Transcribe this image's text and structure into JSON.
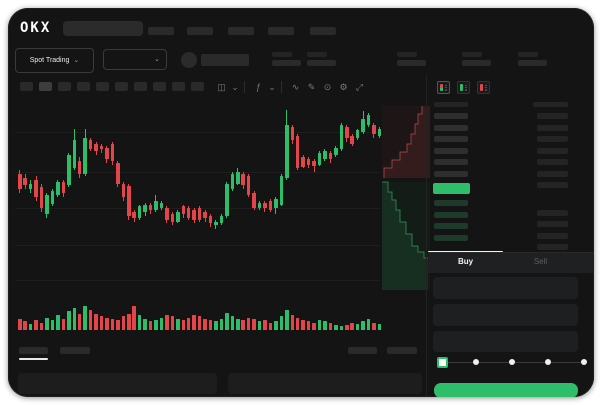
{
  "app": {
    "logo_text": "OKX"
  },
  "colors": {
    "green": "#2ebd69",
    "red": "#e2464a",
    "card_bg": "#141414",
    "placeholder": "#2a2a2a",
    "bid_row_tint": "#1d3a2b",
    "gridline": "#1e1e1e"
  },
  "header": {
    "nav_item_count": 5
  },
  "subheader": {
    "market_type_label": "Spot Trading",
    "chevron": "⌄",
    "stat_pair_count": 5
  },
  "chart_toolbar": {
    "interval_button_count": 10,
    "active_interval_index": 1,
    "icons": [
      {
        "name": "chart-type-icon",
        "glyph": "◫"
      },
      {
        "name": "chevron-down-icon",
        "glyph": "⌄"
      },
      {
        "name": "divider",
        "glyph": ""
      },
      {
        "name": "indicators-icon",
        "glyph": "ƒ"
      },
      {
        "name": "chevron-down-icon",
        "glyph": "⌄"
      },
      {
        "name": "divider",
        "glyph": ""
      },
      {
        "name": "line-tool-icon",
        "glyph": "∿"
      },
      {
        "name": "draw-tool-icon",
        "glyph": "✎"
      },
      {
        "name": "screenshot-icon",
        "glyph": "⊙"
      },
      {
        "name": "settings-icon",
        "glyph": "⚙"
      },
      {
        "name": "fullscreen-icon",
        "glyph": "⤢"
      }
    ]
  },
  "orderbook": {
    "view_icons": [
      {
        "name": "book-combined-icon",
        "mode": "both",
        "active": true
      },
      {
        "name": "book-bids-icon",
        "mode": "bids",
        "active": false
      },
      {
        "name": "book-asks-icon",
        "mode": "asks",
        "active": false
      }
    ],
    "ask_row_count": 7,
    "bid_row_count": 5,
    "last_price_highlight_color": "#2ebd69"
  },
  "trade_form": {
    "tabs": [
      {
        "label": "Buy",
        "active": true
      },
      {
        "label": "Sell",
        "active": false
      }
    ],
    "field_count": 3,
    "slider_stop_count": 5,
    "slider_position_index": 0,
    "submit_color": "#2ebd69"
  },
  "bottom_bar": {
    "left_tab_count": 2,
    "active_left_tab_index": 0,
    "right_tab_count": 2,
    "panel_count": 2
  },
  "chart_data": {
    "type": "candlestick",
    "title": "",
    "xlabel": "",
    "ylabel": "",
    "ylim": [
      0,
      100
    ],
    "grid": true,
    "candles_ohlc": [
      [
        61,
        63,
        51,
        53
      ],
      [
        59,
        61,
        53,
        55
      ],
      [
        53,
        58,
        51,
        56
      ],
      [
        58,
        60,
        47,
        49
      ],
      [
        54,
        56,
        41,
        43
      ],
      [
        40,
        51,
        38,
        50
      ],
      [
        45,
        53,
        44,
        52
      ],
      [
        50,
        58,
        49,
        57
      ],
      [
        57,
        58,
        49,
        51
      ],
      [
        55,
        72,
        54,
        71
      ],
      [
        64,
        85,
        63,
        79
      ],
      [
        68,
        70,
        59,
        61
      ],
      [
        61,
        85,
        60,
        80
      ],
      [
        79,
        80,
        73,
        74
      ],
      [
        77,
        78,
        71,
        73
      ],
      [
        76,
        77,
        72,
        74
      ],
      [
        75,
        76,
        67,
        69
      ],
      [
        77,
        78,
        66,
        68
      ],
      [
        67,
        68,
        54,
        56
      ],
      [
        56,
        57,
        47,
        49
      ],
      [
        55,
        56,
        37,
        39
      ],
      [
        41,
        42,
        36,
        38
      ],
      [
        38,
        45,
        37,
        44
      ],
      [
        41,
        46,
        39,
        45
      ],
      [
        45,
        46,
        40,
        42
      ],
      [
        42,
        50,
        41,
        47
      ],
      [
        43,
        47,
        42,
        46
      ],
      [
        43,
        44,
        35,
        37
      ],
      [
        40,
        41,
        34,
        36
      ],
      [
        36,
        42,
        35,
        41
      ],
      [
        44,
        45,
        38,
        40
      ],
      [
        43,
        44,
        37,
        38
      ],
      [
        42,
        43,
        35,
        37
      ],
      [
        43,
        44,
        36,
        37
      ],
      [
        41,
        42,
        36,
        38
      ],
      [
        39,
        40,
        33,
        35
      ],
      [
        34,
        37,
        32,
        36
      ],
      [
        35,
        40,
        34,
        39
      ],
      [
        39,
        57,
        38,
        56
      ],
      [
        53,
        62,
        52,
        61
      ],
      [
        56,
        64,
        55,
        62
      ],
      [
        61,
        62,
        53,
        55
      ],
      [
        60,
        61,
        49,
        50
      ],
      [
        51,
        52,
        42,
        43
      ],
      [
        43,
        47,
        42,
        46
      ],
      [
        46,
        47,
        41,
        43
      ],
      [
        47,
        48,
        41,
        42
      ],
      [
        43,
        49,
        40,
        48
      ],
      [
        45,
        61,
        44,
        60
      ],
      [
        59,
        95,
        58,
        87
      ],
      [
        86,
        87,
        77,
        79
      ],
      [
        81,
        82,
        63,
        64
      ],
      [
        70,
        71,
        64,
        65
      ],
      [
        69,
        70,
        64,
        66
      ],
      [
        68,
        69,
        62,
        65
      ],
      [
        66,
        73,
        65,
        72
      ],
      [
        69,
        74,
        68,
        73
      ],
      [
        72,
        73,
        67,
        69
      ],
      [
        71,
        76,
        70,
        75
      ],
      [
        74,
        88,
        73,
        87
      ],
      [
        86,
        87,
        78,
        80
      ],
      [
        81,
        82,
        76,
        77
      ],
      [
        80,
        85,
        79,
        84
      ],
      [
        83,
        94,
        82,
        90
      ],
      [
        87,
        93,
        86,
        92
      ],
      [
        87,
        88,
        80,
        82
      ],
      [
        81,
        86,
        80,
        85
      ]
    ],
    "volumes": [
      9,
      7,
      5,
      8,
      6,
      10,
      8,
      12,
      9,
      15,
      18,
      13,
      19,
      16,
      13,
      11,
      10,
      9,
      8,
      11,
      13,
      19,
      12,
      9,
      7,
      8,
      10,
      12,
      11,
      9,
      8,
      10,
      12,
      11,
      9,
      8,
      7,
      9,
      14,
      11,
      9,
      8,
      10,
      9,
      7,
      8,
      6,
      7,
      11,
      16,
      12,
      10,
      8,
      7,
      6,
      8,
      7,
      6,
      4,
      3,
      4,
      6,
      5,
      7,
      9,
      6,
      5
    ],
    "depth": {
      "asks_side": "top",
      "bids_side": "bottom"
    }
  }
}
